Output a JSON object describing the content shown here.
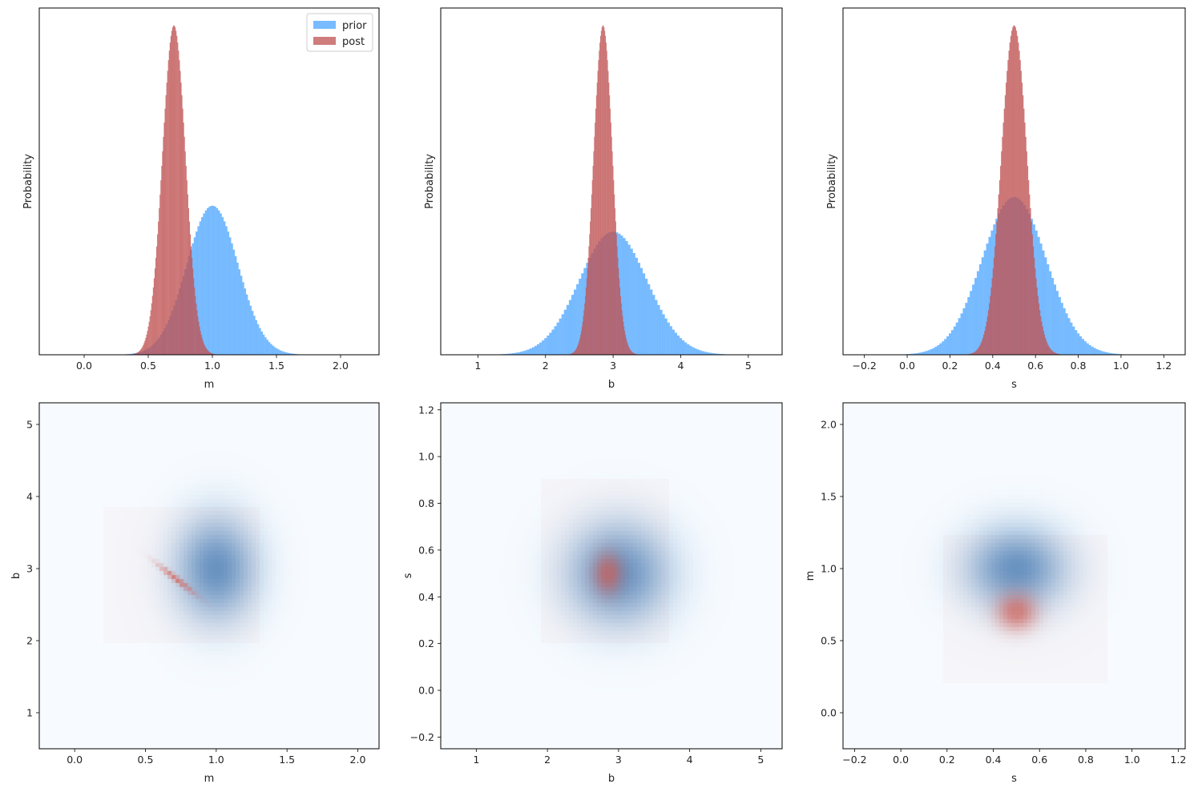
{
  "colors": {
    "prior": "#4da6ff",
    "post": "#c05353",
    "overlap": "#8b4f73",
    "heat_bg": "#f7fbff",
    "heat_prior": "#3c78b4",
    "heat_post": "#d25a50"
  },
  "chart_data": [
    {
      "type": "histogram",
      "xlabel": "m",
      "ylabel": "Probability",
      "xlim": [
        -0.35,
        2.3
      ],
      "xticks": [
        0.0,
        0.5,
        1.0,
        1.5,
        2.0
      ],
      "tick_labels": [
        "0.0",
        "0.5",
        "1.0",
        "1.5",
        "2.0"
      ],
      "legend": {
        "position": "top-right",
        "entries": [
          "prior",
          "post"
        ]
      },
      "series": [
        {
          "name": "prior",
          "dist": "normal",
          "mean": 1.0,
          "sd": 0.2,
          "peak_fraction": 0.43
        },
        {
          "name": "post",
          "dist": "normal",
          "mean": 0.7,
          "sd": 0.09,
          "peak_fraction": 0.95
        }
      ]
    },
    {
      "type": "histogram",
      "xlabel": "b",
      "ylabel": "Probability",
      "xlim": [
        0.45,
        5.5
      ],
      "xticks": [
        1,
        2,
        3,
        4,
        5
      ],
      "tick_labels": [
        "1",
        "2",
        "3",
        "4",
        "5"
      ],
      "series": [
        {
          "name": "prior",
          "dist": "normal",
          "mean": 3.0,
          "sd": 0.5,
          "peak_fraction": 0.355
        },
        {
          "name": "post",
          "dist": "normal",
          "mean": 2.85,
          "sd": 0.14,
          "peak_fraction": 0.95
        }
      ]
    },
    {
      "type": "histogram",
      "xlabel": "s",
      "ylabel": "Probability",
      "xlim": [
        -0.3,
        1.3
      ],
      "xticks": [
        -0.2,
        0.0,
        0.2,
        0.4,
        0.6,
        0.8,
        1.0,
        1.2
      ],
      "tick_labels": [
        "−0.2",
        "0.0",
        "0.2",
        "0.4",
        "0.6",
        "0.8",
        "1.0",
        "1.2"
      ],
      "series": [
        {
          "name": "prior",
          "dist": "normal",
          "mean": 0.5,
          "sd": 0.15,
          "peak_fraction": 0.455
        },
        {
          "name": "post",
          "dist": "normal",
          "mean": 0.5,
          "sd": 0.06,
          "peak_fraction": 0.95
        }
      ]
    },
    {
      "type": "heatmap",
      "xlabel": "m",
      "ylabel": "b",
      "xlim": [
        -0.25,
        2.15
      ],
      "ylim": [
        0.5,
        5.3
      ],
      "xticks": [
        0.0,
        0.5,
        1.0,
        1.5,
        2.0
      ],
      "xtick_labels": [
        "0.0",
        "0.5",
        "1.0",
        "1.5",
        "2.0"
      ],
      "yticks": [
        1,
        2,
        3,
        4,
        5
      ],
      "ytick_labels": [
        "1",
        "2",
        "3",
        "4",
        "5"
      ],
      "prior": {
        "mx": 1.0,
        "my": 3.0,
        "sx": 0.2,
        "sy": 0.5,
        "rho": 0.0
      },
      "post": {
        "mx": 0.72,
        "my": 2.85,
        "sx": 0.09,
        "sy": 0.14,
        "rho": -0.97
      },
      "post_extent": {
        "x": [
          0.2,
          1.3
        ],
        "y": [
          1.95,
          3.85
        ]
      }
    },
    {
      "type": "heatmap",
      "xlabel": "b",
      "ylabel": "s",
      "xlim": [
        0.5,
        5.3
      ],
      "ylim": [
        -0.25,
        1.23
      ],
      "xticks": [
        1,
        2,
        3,
        4,
        5
      ],
      "xtick_labels": [
        "1",
        "2",
        "3",
        "4",
        "5"
      ],
      "yticks": [
        -0.2,
        0.0,
        0.2,
        0.4,
        0.6,
        0.8,
        1.0,
        1.2
      ],
      "ytick_labels": [
        "−0.2",
        "0.0",
        "0.2",
        "0.4",
        "0.6",
        "0.8",
        "1.0",
        "1.2"
      ],
      "prior": {
        "mx": 3.0,
        "my": 0.5,
        "sx": 0.5,
        "sy": 0.15,
        "rho": 0.0
      },
      "post": {
        "mx": 2.85,
        "my": 0.5,
        "sx": 0.14,
        "sy": 0.06,
        "rho": 0.0
      },
      "post_extent": {
        "x": [
          1.9,
          3.7
        ],
        "y": [
          0.2,
          0.9
        ]
      }
    },
    {
      "type": "heatmap",
      "xlabel": "s",
      "ylabel": "m",
      "xlim": [
        -0.25,
        1.23
      ],
      "ylim": [
        -0.25,
        2.15
      ],
      "xticks": [
        -0.2,
        0.0,
        0.2,
        0.4,
        0.6,
        0.8,
        1.0,
        1.2
      ],
      "xtick_labels": [
        "−0.2",
        "0.0",
        "0.2",
        "0.4",
        "0.6",
        "0.8",
        "1.0",
        "1.2"
      ],
      "yticks": [
        0.0,
        0.5,
        1.0,
        1.5,
        2.0
      ],
      "ytick_labels": [
        "0.0",
        "0.5",
        "1.0",
        "1.5",
        "2.0"
      ],
      "prior": {
        "mx": 0.5,
        "my": 1.0,
        "sx": 0.15,
        "sy": 0.2,
        "rho": 0.0
      },
      "post": {
        "mx": 0.5,
        "my": 0.7,
        "sx": 0.06,
        "sy": 0.09,
        "rho": 0.0
      },
      "post_extent": {
        "x": [
          0.18,
          0.9
        ],
        "y": [
          0.2,
          1.23
        ]
      }
    }
  ]
}
